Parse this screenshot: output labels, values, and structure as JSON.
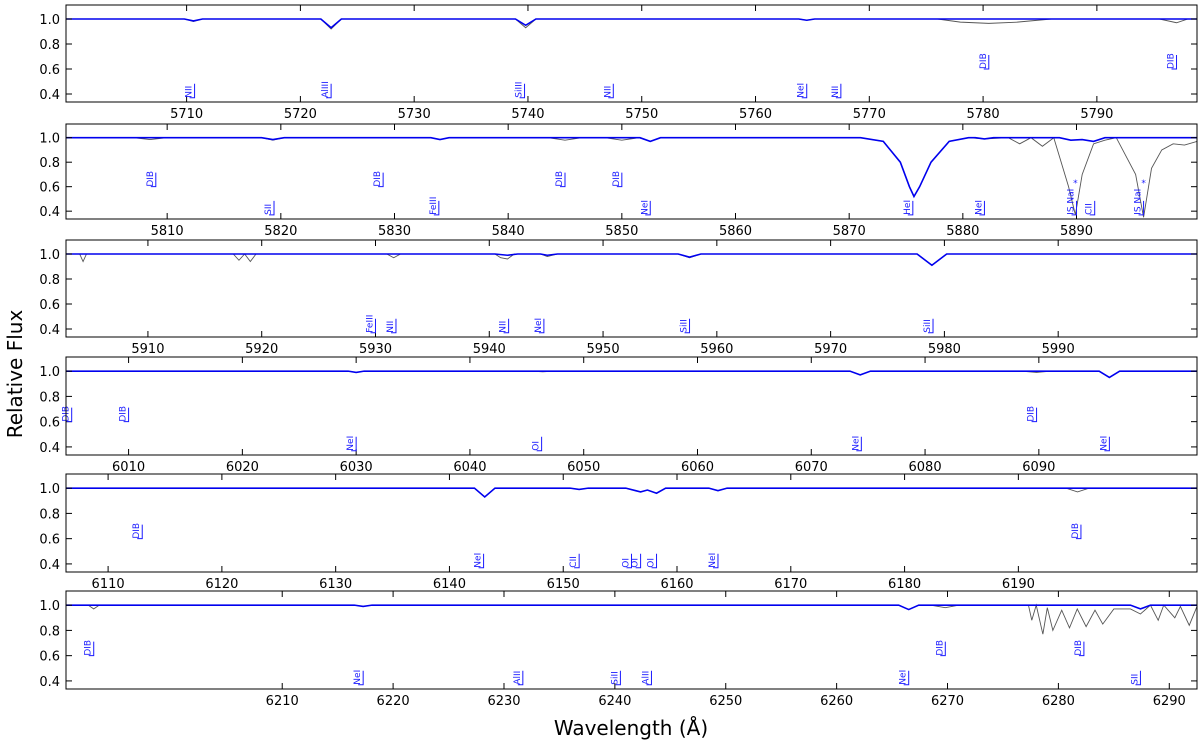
{
  "figure": {
    "xlabel": "Wavelength (Å)",
    "ylabel": "Relative Flux",
    "label_color": "#1a1aff"
  },
  "chart_data": [
    {
      "type": "line",
      "xlim": [
        5699.4,
        5798.8
      ],
      "ylim": [
        0.336,
        1.112
      ],
      "xticks": [
        5710,
        5720,
        5730,
        5740,
        5750,
        5760,
        5770,
        5780,
        5790
      ],
      "yticks": [
        0.4,
        0.6,
        0.8,
        {
          "value": 1,
          "label": "1.0"
        }
      ],
      "series": [
        {
          "color": "#555555",
          "x": [
            5699.4,
            5709.8,
            5710.6,
            5711.4,
            5721.8,
            5722.7,
            5723.6,
            5738.9,
            5739.8,
            5740.7,
            5763.8,
            5764.5,
            5765.2,
            5776,
            5778,
            5780.5,
            5783,
            5786,
            5795.5,
            5797,
            5798,
            5798.8
          ],
          "values": [
            1,
            1,
            0.98,
            1,
            1,
            0.92,
            1,
            1,
            0.93,
            1,
            1,
            0.99,
            1,
            1,
            0.975,
            0.965,
            0.975,
            1,
            1,
            0.97,
            1,
            1
          ]
        },
        {
          "color": "#0000ee",
          "x": [
            5699.4,
            5709.8,
            5710.6,
            5711.4,
            5721.8,
            5722.7,
            5723.6,
            5738.9,
            5739.8,
            5740.7,
            5763.8,
            5764.5,
            5765.2,
            5798.8
          ],
          "values": [
            1,
            1,
            0.985,
            1,
            1,
            0.93,
            1,
            1,
            0.95,
            1,
            1,
            0.99,
            1,
            1
          ]
        }
      ],
      "annotations": [
        {
          "text": "NII",
          "x": 5710.7,
          "y": 0.37
        },
        {
          "text": "AlIII",
          "x": 5722.7,
          "y": 0.37
        },
        {
          "text": "SiIII",
          "x": 5739.7,
          "y": 0.37
        },
        {
          "text": "NII",
          "x": 5747.5,
          "y": 0.37
        },
        {
          "text": "NeI",
          "x": 5764.5,
          "y": 0.37
        },
        {
          "text": "NII",
          "x": 5767.5,
          "y": 0.37
        },
        {
          "text": "DIB",
          "x": 5780.5,
          "y": 0.6
        },
        {
          "text": "DIB",
          "x": 5797,
          "y": 0.6
        }
      ],
      "star_marks": []
    },
    {
      "type": "line",
      "xlim": [
        5801.1,
        5900.6
      ],
      "ylim": [
        0.336,
        1.112
      ],
      "xticks": [
        5810,
        5820,
        5830,
        5840,
        5850,
        5860,
        5870,
        5880,
        5890
      ],
      "yticks": [
        0.4,
        0.6,
        0.8,
        {
          "value": 1,
          "label": "1.0"
        }
      ],
      "series": [
        {
          "color": "#555555",
          "x": [
            5801.1,
            5807,
            5808.5,
            5810,
            5818.3,
            5819.3,
            5820.3,
            5833.2,
            5834,
            5834.8,
            5843.5,
            5845,
            5846.5,
            5848.5,
            5850,
            5851.5,
            5852.5,
            5853.4,
            5871,
            5873,
            5874.5,
            5875.3,
            5875.7,
            5876.2,
            5877.2,
            5878.8,
            5880.5,
            5881.9,
            5884,
            5885,
            5886,
            5887,
            5888,
            5889.3,
            5889.9,
            5890.5,
            5891.5,
            5892.5,
            5893.5,
            5895.2,
            5895.9,
            5896.6,
            5897.5,
            5898.5,
            5899.5,
            5900.6
          ],
          "values": [
            1,
            1,
            0.985,
            1,
            1,
            0.98,
            1,
            1,
            0.985,
            1,
            1,
            0.98,
            1,
            1,
            0.98,
            1,
            0.97,
            1,
            1,
            0.97,
            0.8,
            0.6,
            0.52,
            0.6,
            0.8,
            0.97,
            1,
            0.99,
            1,
            0.95,
            1,
            0.93,
            1,
            0.6,
            0.37,
            0.7,
            0.95,
            0.98,
            1,
            0.7,
            0.35,
            0.75,
            0.9,
            0.95,
            0.94,
            0.97
          ]
        },
        {
          "color": "#0000ee",
          "x": [
            5801.1,
            5818.3,
            5819.3,
            5820.3,
            5833.2,
            5834,
            5834.8,
            5851.6,
            5852.5,
            5853.4,
            5871,
            5873,
            5874.5,
            5875.3,
            5875.7,
            5876.2,
            5877.2,
            5878.8,
            5880.5,
            5881.1,
            5881.9,
            5882.7,
            5888.5,
            5889.5,
            5890.5,
            5891.5,
            5892.5,
            5900.6
          ],
          "values": [
            1,
            1,
            0.985,
            1,
            1,
            0.985,
            1,
            1,
            0.97,
            1,
            1,
            0.97,
            0.8,
            0.6,
            0.52,
            0.6,
            0.8,
            0.97,
            1,
            1,
            0.99,
            1,
            1,
            0.98,
            0.985,
            0.97,
            1,
            1
          ]
        }
      ],
      "annotations": [
        {
          "text": "DIB",
          "x": 5809,
          "y": 0.6
        },
        {
          "text": "SII",
          "x": 5819.4,
          "y": 0.37
        },
        {
          "text": "DIB",
          "x": 5829,
          "y": 0.6
        },
        {
          "text": "FeIII",
          "x": 5833.9,
          "y": 0.37
        },
        {
          "text": "DIB",
          "x": 5845,
          "y": 0.6
        },
        {
          "text": "DIB",
          "x": 5850,
          "y": 0.6
        },
        {
          "text": "NeI",
          "x": 5852.5,
          "y": 0.37
        },
        {
          "text": "HeI",
          "x": 5875.6,
          "y": 0.37
        },
        {
          "text": "NeI",
          "x": 5881.9,
          "y": 0.37
        },
        {
          "text": "IS NaI",
          "x": 5890,
          "y": 0.37
        },
        {
          "text": "CII",
          "x": 5891.6,
          "y": 0.37
        },
        {
          "text": "IS NaI",
          "x": 5895.9,
          "y": 0.37
        }
      ],
      "star_marks": [
        {
          "text": "*",
          "x": 5889.9,
          "y": 0.64
        },
        {
          "text": "*",
          "x": 5895.9,
          "y": 0.64
        }
      ]
    },
    {
      "type": "line",
      "xlim": [
        5902.8,
        6002.2
      ],
      "ylim": [
        0.336,
        1.112
      ],
      "xticks": [
        5910,
        5920,
        5930,
        5940,
        5950,
        5960,
        5970,
        5980,
        5990
      ],
      "yticks": [
        0.4,
        0.6,
        0.8,
        {
          "value": 1,
          "label": "1.0"
        }
      ],
      "series": [
        {
          "color": "#555555",
          "x": [
            5902.8,
            5904,
            5904.3,
            5904.6,
            5917.5,
            5918,
            5918.5,
            5919,
            5919.5,
            5931,
            5931.6,
            5932.2,
            5940.5,
            5941,
            5941.6,
            5942.2,
            5944.5,
            5945.1,
            5946,
            5956.6,
            5957.6,
            5958.6,
            5977.6,
            5978.9,
            5980.2,
            6002.2
          ],
          "values": [
            1,
            1,
            0.94,
            1,
            1,
            0.95,
            1,
            0.94,
            1,
            1,
            0.97,
            1,
            1,
            0.97,
            0.96,
            1,
            1,
            0.98,
            1,
            1,
            0.97,
            1,
            1,
            0.91,
            1,
            1
          ]
        },
        {
          "color": "#0000ee",
          "x": [
            5902.8,
            5940.5,
            5941.6,
            5942.5,
            5944.5,
            5945.1,
            5946,
            5956.6,
            5957.6,
            5958.6,
            5977.6,
            5978.9,
            5980.2,
            6002.2
          ],
          "values": [
            1,
            1,
            0.99,
            1,
            1,
            0.99,
            1,
            1,
            0.975,
            1,
            1,
            0.91,
            1,
            1
          ]
        }
      ],
      "annotations": [
        {
          "text": "FeIII",
          "x": 5930,
          "y": 0.37
        },
        {
          "text": "NII",
          "x": 5931.8,
          "y": 0.37
        },
        {
          "text": "NII",
          "x": 5941.7,
          "y": 0.37
        },
        {
          "text": "NeI",
          "x": 5944.8,
          "y": 0.37
        },
        {
          "text": "SiII",
          "x": 5957.6,
          "y": 0.37
        },
        {
          "text": "SiII",
          "x": 5979,
          "y": 0.37
        }
      ],
      "star_marks": []
    },
    {
      "type": "line",
      "xlim": [
        6004.5,
        6103.9
      ],
      "ylim": [
        0.336,
        1.112
      ],
      "xticks": [
        6010,
        6020,
        6030,
        6040,
        6050,
        6060,
        6070,
        6080,
        6090
      ],
      "yticks": [
        0.4,
        0.6,
        0.8,
        {
          "value": 1,
          "label": "1.0"
        }
      ],
      "series": [
        {
          "color": "#555555",
          "x": [
            6004.5,
            6029.3,
            6030,
            6030.7,
            6045.5,
            6046.4,
            6047.3,
            6073.4,
            6074.3,
            6075.2,
            6088.5,
            6089.8,
            6091,
            6095.3,
            6096.2,
            6097.1,
            6103.9
          ],
          "values": [
            1,
            1,
            0.99,
            1,
            1,
            0.995,
            1,
            1,
            0.97,
            1,
            1,
            0.99,
            1,
            1,
            0.95,
            1,
            1
          ]
        },
        {
          "color": "#0000ee",
          "x": [
            6004.5,
            6029.3,
            6030,
            6030.7,
            6073.4,
            6074.3,
            6075.2,
            6095.3,
            6096.2,
            6097.1,
            6103.9
          ],
          "values": [
            1,
            1,
            0.99,
            1,
            1,
            0.97,
            1,
            1,
            0.95,
            1,
            1
          ]
        }
      ],
      "annotations": [
        {
          "text": "DIB",
          "x": 6005,
          "y": 0.6
        },
        {
          "text": "DIB",
          "x": 6010,
          "y": 0.6
        },
        {
          "text": "NeI",
          "x": 6030,
          "y": 0.37
        },
        {
          "text": "OI",
          "x": 6046.3,
          "y": 0.37
        },
        {
          "text": "NeI",
          "x": 6074.4,
          "y": 0.37
        },
        {
          "text": "DIB",
          "x": 6089.8,
          "y": 0.6
        },
        {
          "text": "NeI",
          "x": 6096.2,
          "y": 0.37
        }
      ],
      "star_marks": []
    },
    {
      "type": "line",
      "xlim": [
        6106.3,
        6205.7
      ],
      "ylim": [
        0.336,
        1.112
      ],
      "xticks": [
        6110,
        6120,
        6130,
        6140,
        6150,
        6160,
        6170,
        6180,
        6190
      ],
      "yticks": [
        0.4,
        0.6,
        0.8,
        {
          "value": 1,
          "label": "1.0"
        }
      ],
      "series": [
        {
          "color": "#555555",
          "x": [
            6106.3,
            6142.2,
            6143.1,
            6144,
            6150.6,
            6151.4,
            6152.2,
            6155.5,
            6156.8,
            6157.4,
            6158.2,
            6159,
            6162.8,
            6163.6,
            6164.4,
            6194.2,
            6195.2,
            6196.2,
            6205.7
          ],
          "values": [
            1,
            1,
            0.93,
            1,
            1,
            0.99,
            1,
            1,
            0.97,
            0.985,
            0.96,
            1,
            1,
            0.98,
            1,
            1,
            0.97,
            1,
            1
          ]
        },
        {
          "color": "#0000ee",
          "x": [
            6106.3,
            6142.2,
            6143.1,
            6144,
            6150.6,
            6151.4,
            6152.2,
            6155.5,
            6156.8,
            6157.4,
            6158.2,
            6159,
            6162.8,
            6163.6,
            6164.4,
            6205.7
          ],
          "values": [
            1,
            1,
            0.93,
            1,
            1,
            0.99,
            1,
            1,
            0.97,
            0.985,
            0.96,
            1,
            1,
            0.98,
            1,
            1
          ]
        }
      ],
      "annotations": [
        {
          "text": "DIB",
          "x": 6113,
          "y": 0.6
        },
        {
          "text": "NeI",
          "x": 6143,
          "y": 0.37
        },
        {
          "text": "CII",
          "x": 6151.4,
          "y": 0.37
        },
        {
          "text": "OI",
          "x": 6156,
          "y": 0.37
        },
        {
          "text": "OI",
          "x": 6156.8,
          "y": 0.37
        },
        {
          "text": "OI",
          "x": 6158.2,
          "y": 0.37
        },
        {
          "text": "NeI",
          "x": 6163.6,
          "y": 0.37
        },
        {
          "text": "DIB",
          "x": 6195.5,
          "y": 0.6
        }
      ],
      "star_marks": []
    },
    {
      "type": "line",
      "xlim": [
        6190.5,
        6292.5
      ],
      "ylim": [
        0.336,
        1.112
      ],
      "xticks": [
        6210,
        6220,
        6230,
        6240,
        6250,
        6260,
        6270,
        6280,
        6290
      ],
      "yticks": [
        0.4,
        0.6,
        0.8,
        {
          "value": 1,
          "label": "1.0"
        }
      ],
      "series": [
        {
          "color": "#555555",
          "x": [
            6190.5,
            6192.5,
            6193,
            6193.5,
            6216.5,
            6217.3,
            6218.1,
            6265.6,
            6266.5,
            6267.4,
            6268.5,
            6269.8,
            6271,
            6277.3,
            6277.6,
            6278,
            6278.6,
            6279,
            6279.5,
            6280.3,
            6281,
            6281.7,
            6282.5,
            6283.3,
            6284,
            6285,
            6286.5,
            6287.4,
            6288.3,
            6289,
            6289.5,
            6290.5,
            6291,
            6291.8,
            6292.5
          ],
          "values": [
            1,
            1,
            0.97,
            1,
            1,
            0.99,
            1,
            1,
            0.965,
            1,
            1,
            0.98,
            1,
            1,
            0.88,
            1,
            0.77,
            0.98,
            0.8,
            0.96,
            0.82,
            0.97,
            0.83,
            0.96,
            0.85,
            0.97,
            0.97,
            0.93,
            1,
            0.88,
            1,
            0.9,
            0.99,
            0.84,
            0.99
          ]
        },
        {
          "color": "#0000ee",
          "x": [
            6190.5,
            6216.5,
            6217.3,
            6218.1,
            6265.6,
            6266.5,
            6267.4,
            6286.5,
            6287.4,
            6288.3,
            6292.5
          ],
          "values": [
            1,
            1,
            0.99,
            1,
            1,
            0.965,
            1,
            1,
            0.97,
            1,
            1
          ]
        }
      ],
      "annotations": [
        {
          "text": "DIB",
          "x": 6193,
          "y": 0.6
        },
        {
          "text": "NeI",
          "x": 6217.3,
          "y": 0.37
        },
        {
          "text": "AlII",
          "x": 6231.7,
          "y": 0.37
        },
        {
          "text": "SiII",
          "x": 6240.5,
          "y": 0.37
        },
        {
          "text": "AlII",
          "x": 6243.3,
          "y": 0.37
        },
        {
          "text": "NeI",
          "x": 6266.5,
          "y": 0.37
        },
        {
          "text": "DIB",
          "x": 6269.8,
          "y": 0.6
        },
        {
          "text": "DIB",
          "x": 6282.3,
          "y": 0.6
        },
        {
          "text": "SII",
          "x": 6287.4,
          "y": 0.37
        }
      ],
      "star_marks": []
    }
  ]
}
